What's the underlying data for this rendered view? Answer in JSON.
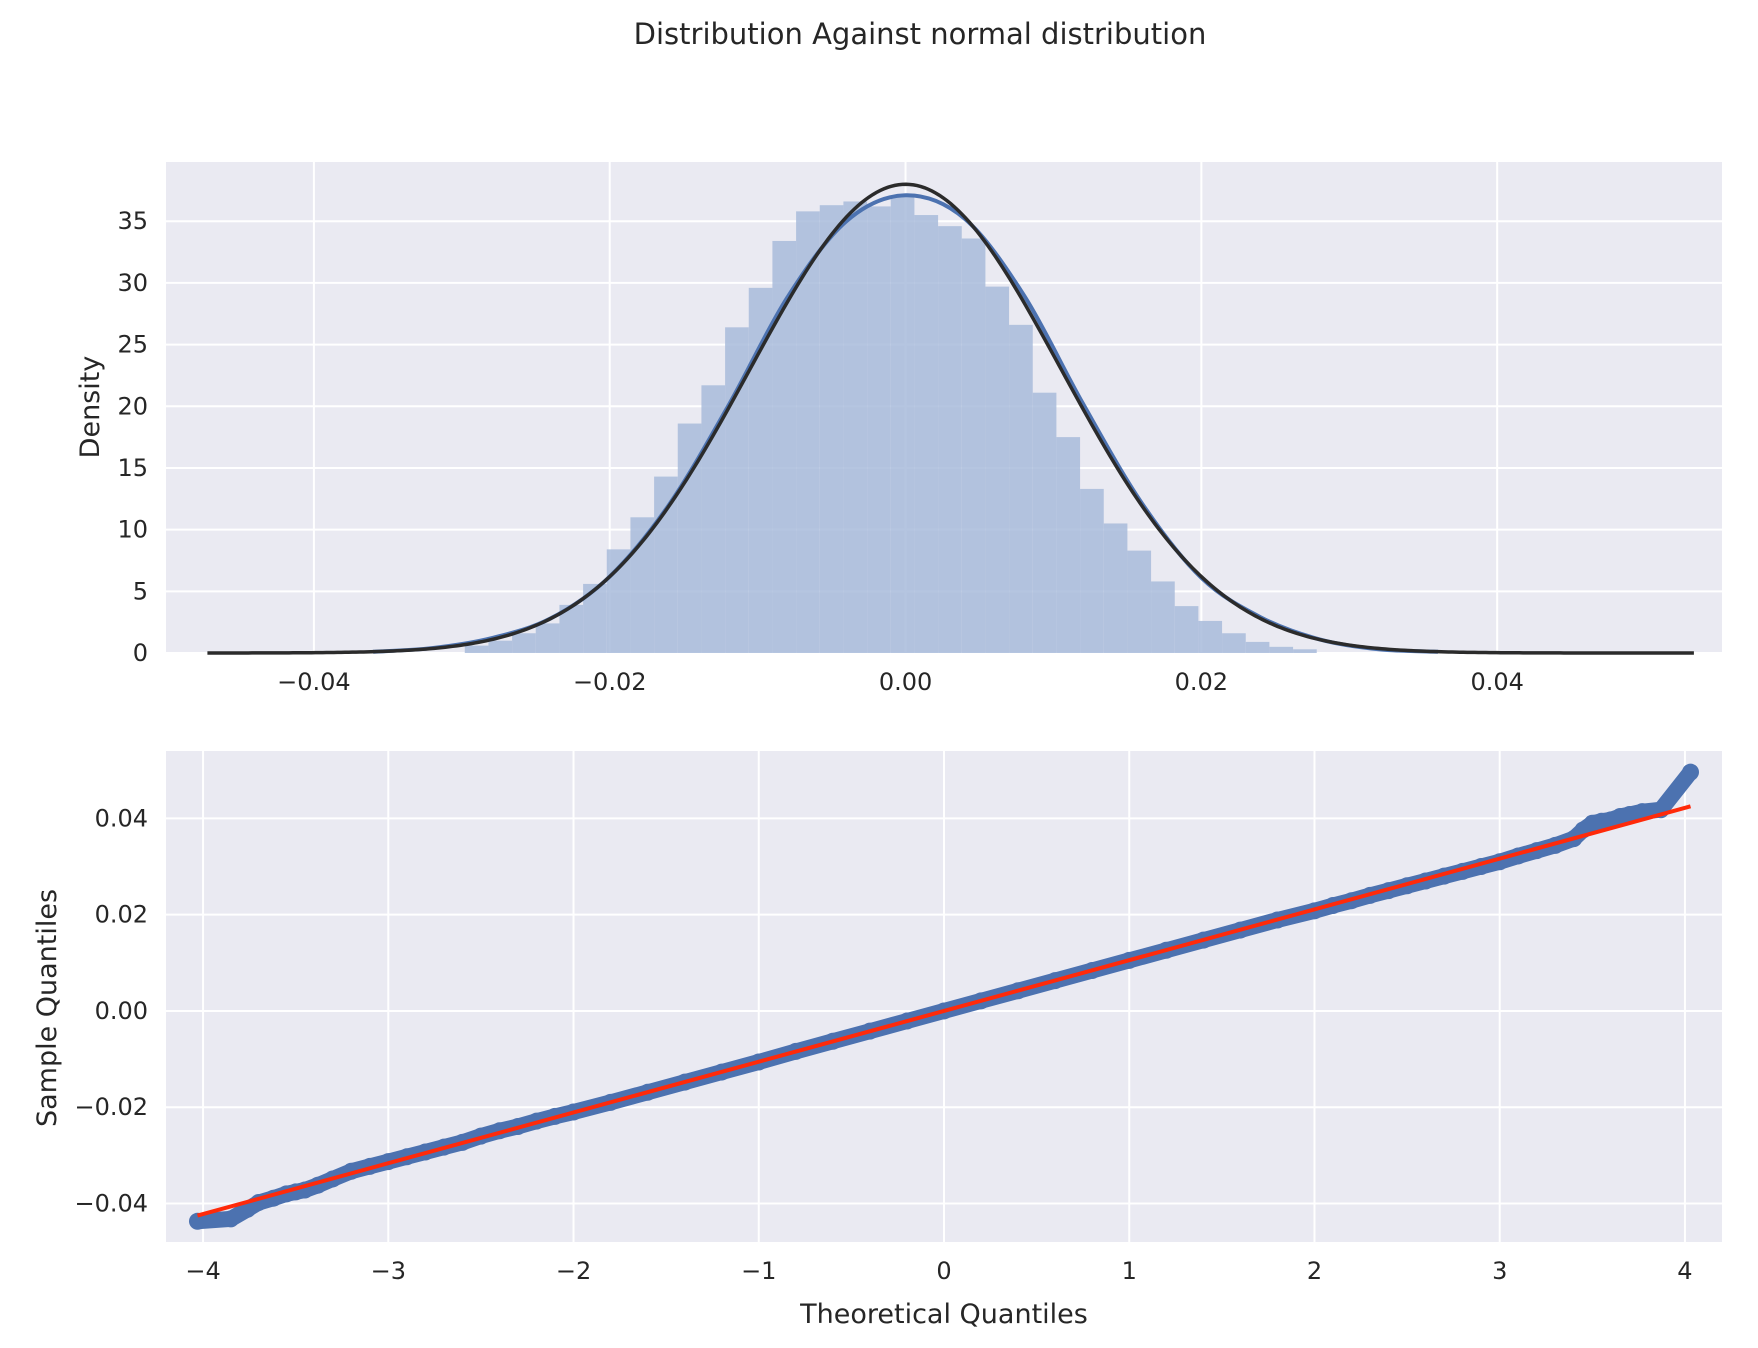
{
  "figure": {
    "title": "Distribution Against normal distribution",
    "colors": {
      "panel_bg": "#eaeaf2",
      "grid": "#ffffff",
      "hist_fill": "#a8bbdb",
      "kde": "#4c72b0",
      "normal_fit": "#2b2b2b",
      "qq_points": "#4c72b0",
      "ref_line": "#ff2a0a"
    }
  },
  "chart_data": [
    {
      "type": "histogram",
      "title": "",
      "xlabel": "",
      "ylabel": "Density",
      "xlim": [
        -0.05,
        0.0552
      ],
      "ylim": [
        0,
        39.8
      ],
      "xticks": [
        -0.04,
        -0.02,
        0.0,
        0.02,
        0.04
      ],
      "xtick_labels": [
        "−0.04",
        "−0.02",
        "0.00",
        "0.02",
        "0.04"
      ],
      "yticks": [
        0,
        5,
        10,
        15,
        20,
        25,
        30,
        35
      ],
      "ytick_labels": [
        "0",
        "5",
        "10",
        "15",
        "20",
        "25",
        "30",
        "35"
      ],
      "grid": true,
      "histogram": {
        "bin_edges": [
          -0.0298,
          -0.0282,
          -0.0266,
          -0.025,
          -0.0234,
          -0.0218,
          -0.0202,
          -0.0186,
          -0.017,
          -0.0154,
          -0.0138,
          -0.0122,
          -0.0106,
          -0.009,
          -0.0074,
          -0.0058,
          -0.0042,
          -0.0026,
          -0.001,
          0.0006,
          0.0022,
          0.0038,
          0.0054,
          0.007,
          0.0086,
          0.0102,
          0.0118,
          0.0134,
          0.015,
          0.0166,
          0.0182,
          0.0198,
          0.0214,
          0.023,
          0.0246,
          0.0262,
          0.0278
        ],
        "density": [
          0.6,
          1.0,
          1.6,
          2.4,
          3.9,
          5.6,
          8.4,
          11.0,
          14.3,
          18.6,
          21.7,
          26.4,
          29.6,
          33.4,
          35.8,
          36.3,
          36.6,
          36.2,
          37.0,
          35.5,
          34.6,
          33.6,
          29.7,
          26.6,
          21.1,
          17.5,
          13.3,
          10.5,
          8.3,
          5.8,
          3.8,
          2.6,
          1.6,
          0.9,
          0.5,
          0.3
        ]
      },
      "kde": {
        "x": [
          -0.036,
          -0.032,
          -0.028,
          -0.024,
          -0.02,
          -0.016,
          -0.012,
          -0.008,
          -0.004,
          0.0,
          0.004,
          0.008,
          0.012,
          0.016,
          0.02,
          0.024,
          0.028,
          0.032,
          0.036
        ],
        "y": [
          0.1,
          0.4,
          1.2,
          2.8,
          6.2,
          12.0,
          20.0,
          28.8,
          35.0,
          37.1,
          35.2,
          29.0,
          20.2,
          12.1,
          6.1,
          2.9,
          1.1,
          0.3,
          0.1
        ]
      },
      "normal_fit": {
        "name": "normal",
        "mean": 0.0,
        "std": 0.0105,
        "x_range": [
          -0.0472,
          0.0533
        ]
      }
    },
    {
      "type": "scatter",
      "title": "",
      "xlabel": "Theoretical Quantiles",
      "ylabel": "Sample Quantiles",
      "xlim": [
        -4.2,
        4.2
      ],
      "ylim": [
        -0.048,
        0.054
      ],
      "xticks": [
        -4,
        -3,
        -2,
        -1,
        0,
        1,
        2,
        3,
        4
      ],
      "xtick_labels": [
        "−4",
        "−3",
        "−2",
        "−1",
        "0",
        "1",
        "2",
        "3",
        "4"
      ],
      "yticks": [
        -0.04,
        -0.02,
        0.0,
        0.02,
        0.04
      ],
      "ytick_labels": [
        "−0.04",
        "−0.02",
        "0.00",
        "0.02",
        "0.04"
      ],
      "grid": true,
      "points": {
        "x": [
          -4.03,
          -3.85,
          -3.76,
          -3.7,
          -3.62,
          -3.55,
          -3.5,
          -3.45,
          -3.38,
          -3.3,
          -3.2,
          -3.1,
          -3.0,
          -2.9,
          -2.8,
          -2.7,
          -2.6,
          -2.5,
          -2.4,
          -2.3,
          -2.2,
          -2.1,
          -2.0,
          -1.8,
          -1.6,
          -1.4,
          -1.2,
          -1.0,
          -0.8,
          -0.6,
          -0.4,
          -0.2,
          0.0,
          0.2,
          0.4,
          0.6,
          0.8,
          1.0,
          1.2,
          1.4,
          1.6,
          1.8,
          2.0,
          2.1,
          2.2,
          2.3,
          2.4,
          2.5,
          2.6,
          2.7,
          2.8,
          2.9,
          3.0,
          3.1,
          3.2,
          3.3,
          3.4,
          3.45,
          3.5,
          3.55,
          3.6,
          3.65,
          3.7,
          3.77,
          3.87,
          4.03
        ],
        "y": [
          -0.0437,
          -0.0432,
          -0.0412,
          -0.0398,
          -0.0389,
          -0.038,
          -0.0376,
          -0.0372,
          -0.0362,
          -0.0349,
          -0.0333,
          -0.0323,
          -0.0313,
          -0.0303,
          -0.0293,
          -0.0283,
          -0.0273,
          -0.026,
          -0.0249,
          -0.024,
          -0.0229,
          -0.0219,
          -0.021,
          -0.019,
          -0.0169,
          -0.0148,
          -0.0127,
          -0.0106,
          -0.0084,
          -0.0063,
          -0.0042,
          -0.0021,
          0.0,
          0.0021,
          0.0042,
          0.0063,
          0.0084,
          0.0105,
          0.0126,
          0.0147,
          0.0168,
          0.0189,
          0.0208,
          0.0219,
          0.0229,
          0.024,
          0.025,
          0.026,
          0.027,
          0.028,
          0.029,
          0.03,
          0.031,
          0.0322,
          0.0333,
          0.0344,
          0.0358,
          0.0376,
          0.039,
          0.0394,
          0.0397,
          0.0404,
          0.0408,
          0.0414,
          0.0418,
          0.0496
        ]
      },
      "reference_line": {
        "x": [
          -4.03,
          4.03
        ],
        "y": [
          -0.0425,
          0.0425
        ]
      }
    }
  ]
}
